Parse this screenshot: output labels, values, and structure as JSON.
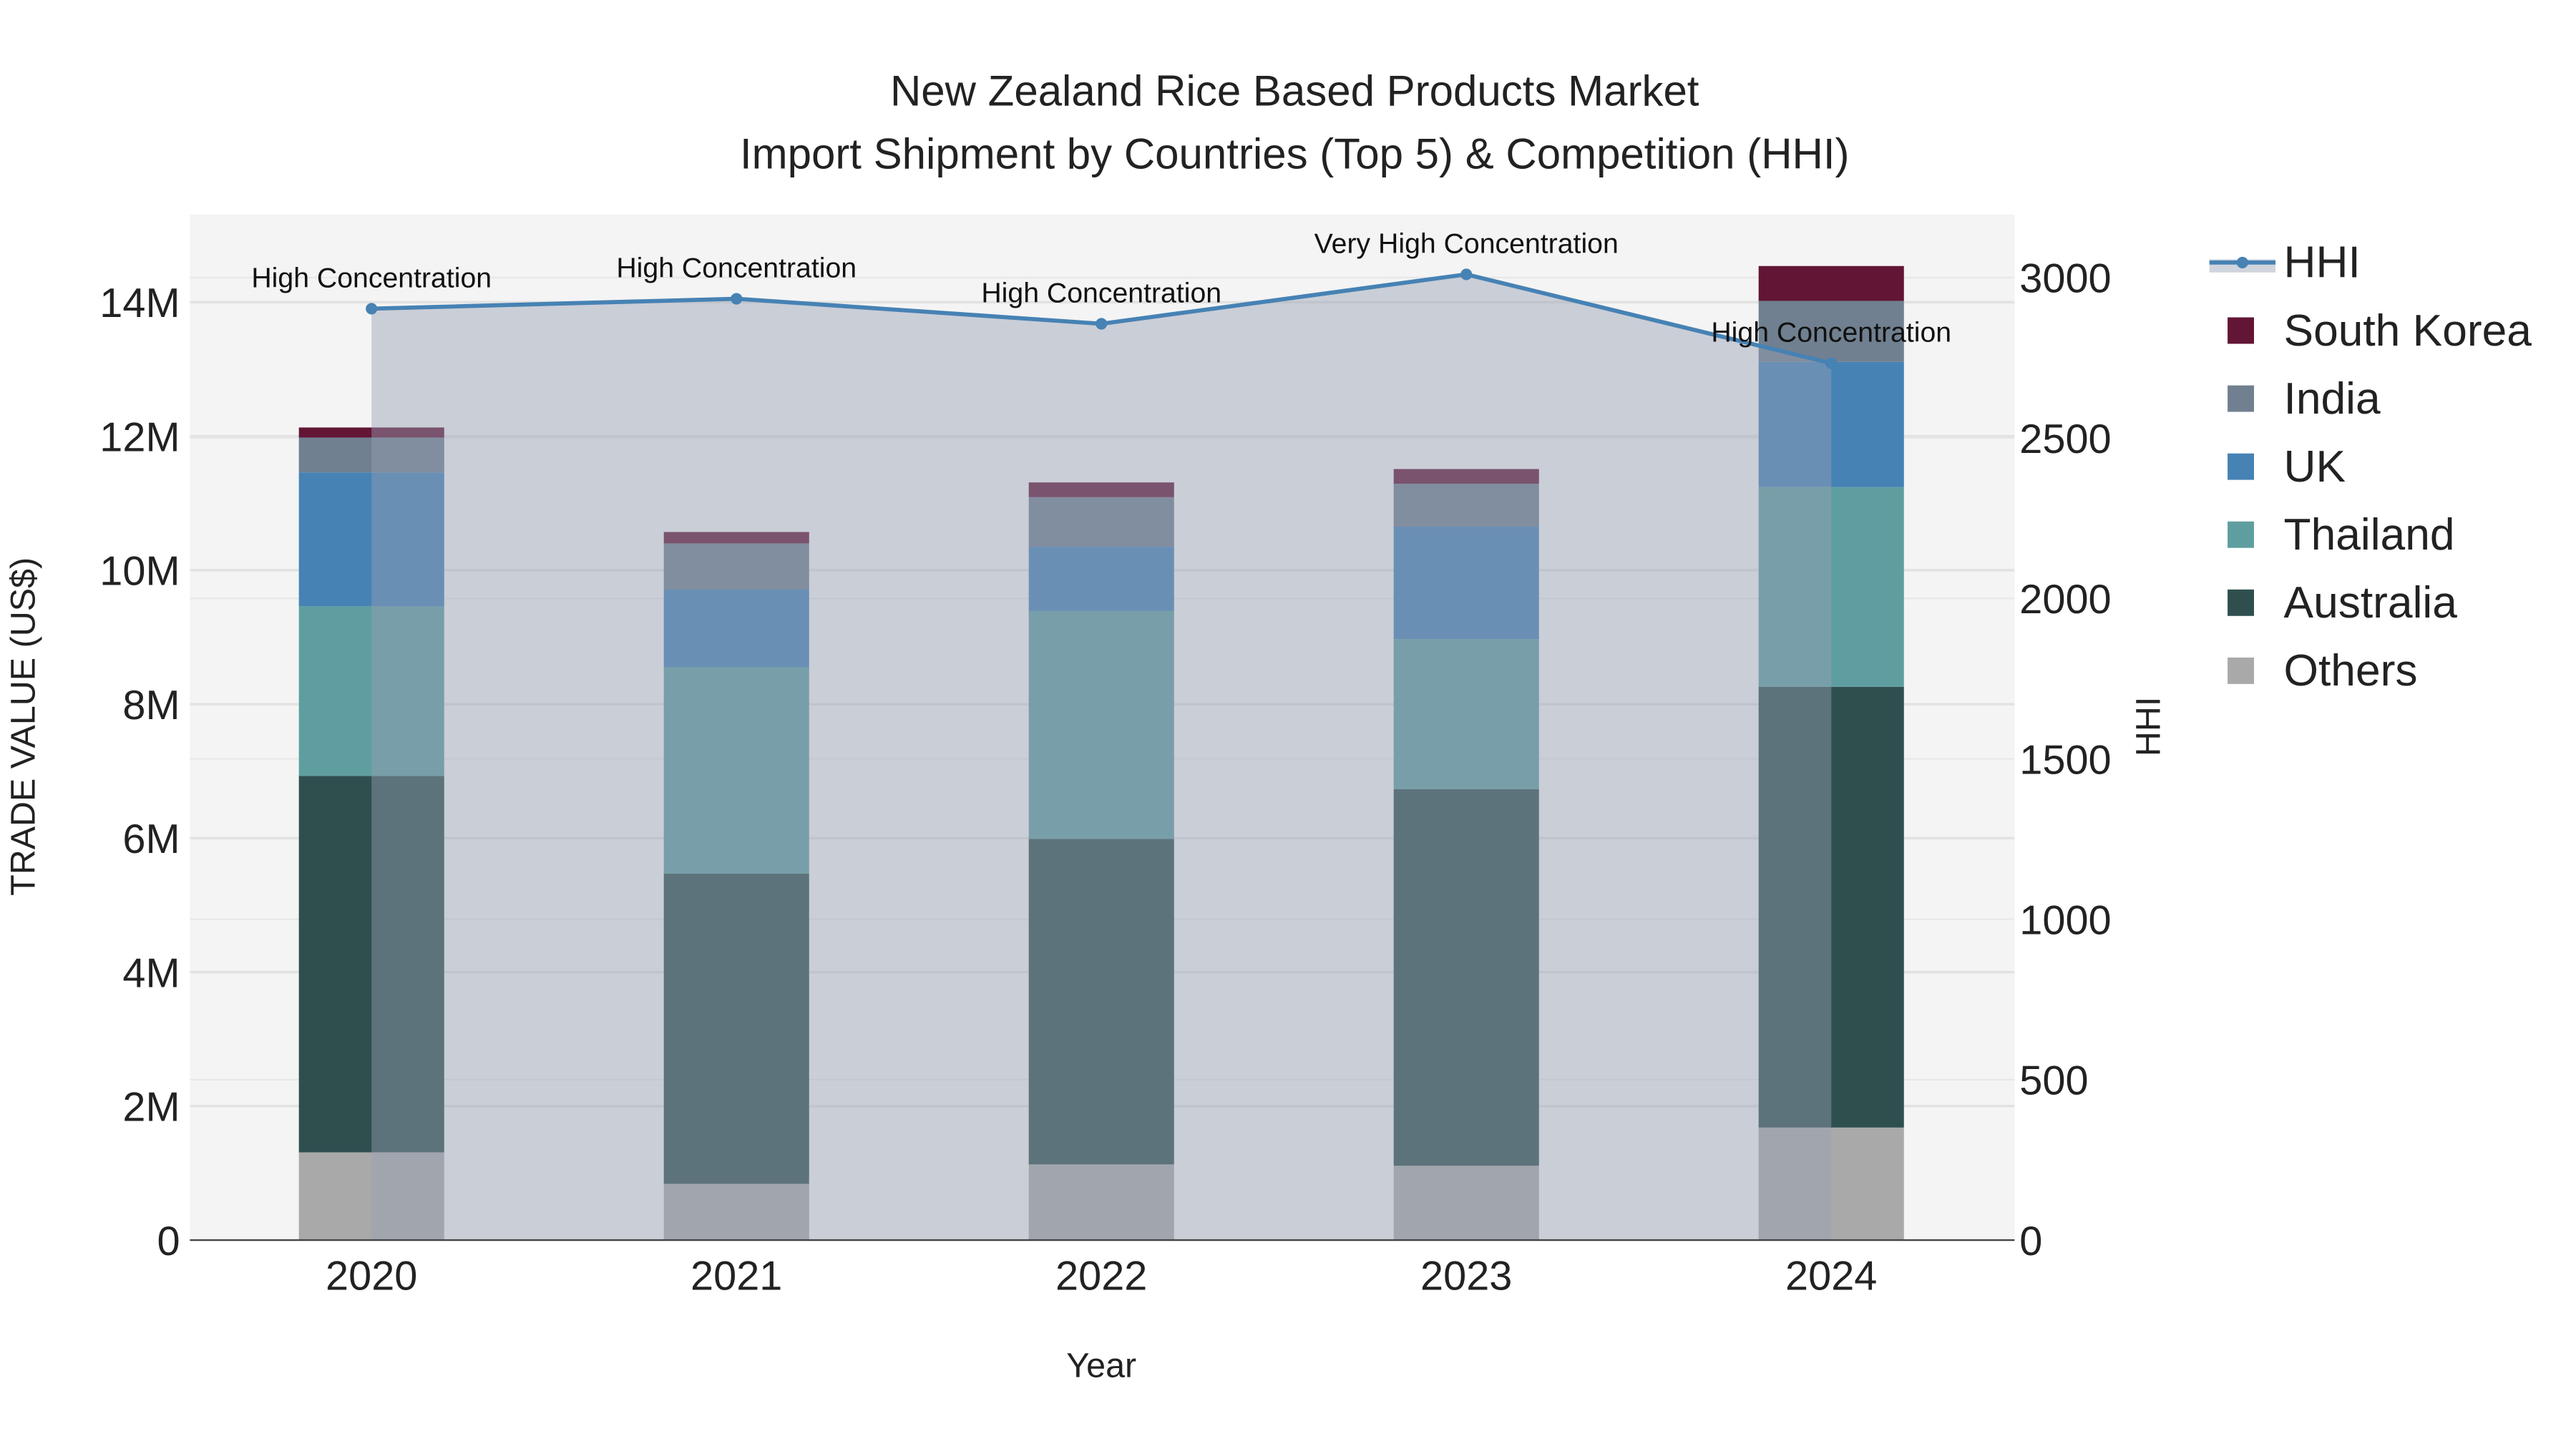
{
  "chart_data": {
    "type": "bar",
    "stacked": true,
    "title_line1": "New Zealand Rice Based Products Market",
    "title_line2": "Import Shipment by Countries (Top 5) & Competition (HHI)",
    "xlabel": "Year",
    "ylabel": "TRADE VALUE (US$)",
    "y2label": "HHI",
    "categories": [
      "2020",
      "2021",
      "2022",
      "2023",
      "2024"
    ],
    "ylim": [
      0,
      15300000
    ],
    "y_ticks": [
      0,
      2000000,
      4000000,
      6000000,
      8000000,
      10000000,
      12000000,
      14000000
    ],
    "y_tick_labels": [
      "0",
      "2M",
      "4M",
      "6M",
      "8M",
      "10M",
      "12M",
      "14M"
    ],
    "y2lim": [
      0,
      3200
    ],
    "y2_ticks": [
      0,
      500,
      1000,
      1500,
      2000,
      2500,
      3000
    ],
    "y2_tick_labels": [
      "0",
      "500",
      "1000",
      "1500",
      "2000",
      "2500",
      "3000"
    ],
    "grid": true,
    "legend_position": "right",
    "series": [
      {
        "name": "Others",
        "color": "#A9A9A9",
        "values": [
          1310000,
          840000,
          1130000,
          1110000,
          1680000
        ]
      },
      {
        "name": "Australia",
        "color": "#2F4F4F",
        "values": [
          5620000,
          4630000,
          4860000,
          5620000,
          6580000
        ]
      },
      {
        "name": "Thailand",
        "color": "#5F9EA0",
        "values": [
          2530000,
          3080000,
          3400000,
          2240000,
          2980000
        ]
      },
      {
        "name": "UK",
        "color": "#4682B4",
        "values": [
          2000000,
          1160000,
          960000,
          1680000,
          1870000
        ]
      },
      {
        "name": "India",
        "color": "#708090",
        "values": [
          520000,
          690000,
          740000,
          640000,
          910000
        ]
      },
      {
        "name": "South Korea",
        "color": "#631535",
        "values": [
          150000,
          170000,
          220000,
          220000,
          520000
        ]
      }
    ],
    "hhi": {
      "name": "HHI",
      "color": "#4682B4",
      "values": [
        2903,
        2934,
        2856,
        3010,
        2733
      ],
      "annotations": [
        "High Concentration",
        "High Concentration",
        "High Concentration",
        "Very High Concentration",
        "High Concentration"
      ]
    },
    "legend_order": [
      "HHI",
      "South Korea",
      "India",
      "UK",
      "Thailand",
      "Australia",
      "Others"
    ]
  }
}
